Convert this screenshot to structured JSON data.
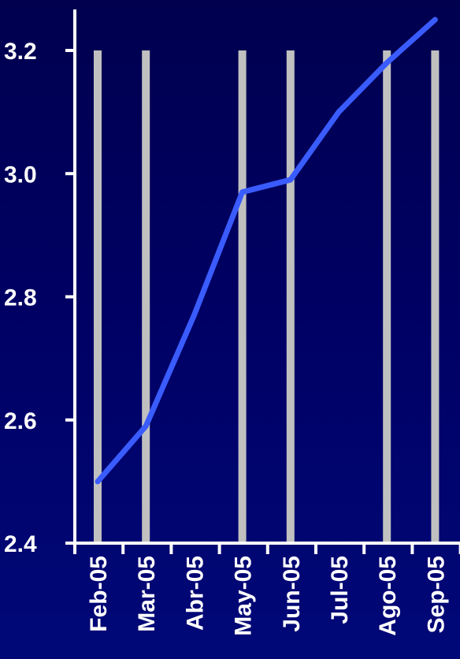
{
  "chart_data": {
    "type": "line",
    "categories": [
      "Feb-05",
      "Mar-05",
      "Abr-05",
      "May-05",
      "Jun-05",
      "Jul-05",
      "Ago-05",
      "Sep-05"
    ],
    "series": [
      {
        "values": [
          2.5,
          2.59,
          2.77,
          2.97,
          2.99,
          3.1,
          3.18,
          3.25
        ]
      }
    ],
    "ylim": [
      2.4,
      3.25
    ],
    "yticks": [
      "2.4",
      "2.6",
      "2.8",
      "3.0",
      "3.2"
    ],
    "ytick_values": [
      2.4,
      2.6,
      2.8,
      3.0,
      3.2
    ],
    "vertical_markers": [
      "Feb-05",
      "Mar-05",
      "May-05",
      "Jun-05",
      "Ago-05",
      "Sep-05"
    ],
    "marker_top_value": 3.2,
    "title": "",
    "xlabel": "",
    "ylabel": "",
    "grid": false,
    "colors": {
      "line": "#3a5cff",
      "markers": "#c0c0c0",
      "axes": "#ffffff",
      "text": "#ffffff"
    }
  }
}
